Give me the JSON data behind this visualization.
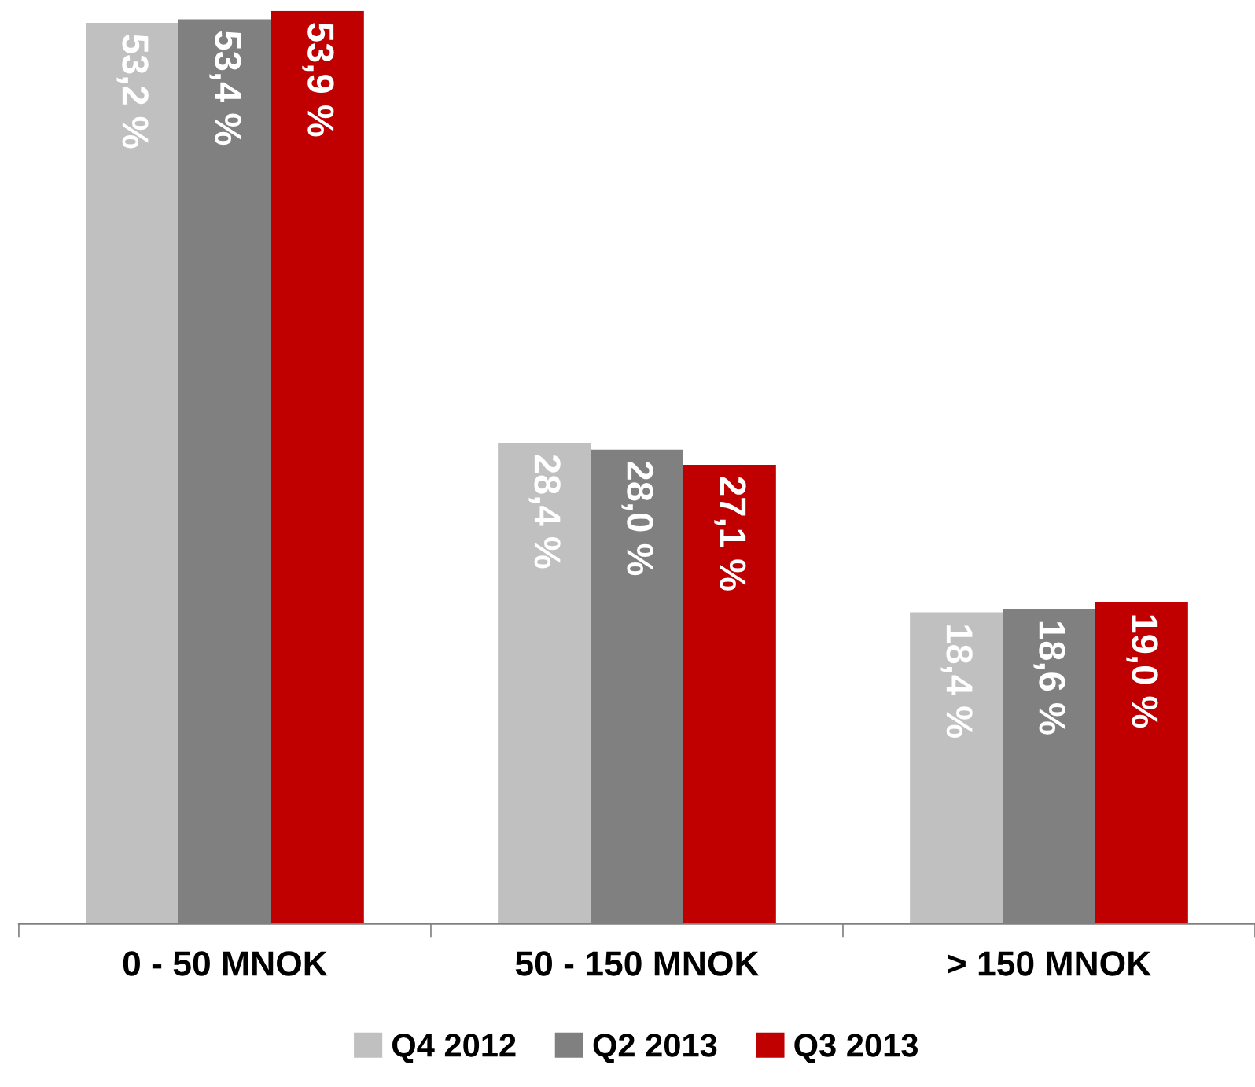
{
  "chart_data": {
    "type": "bar",
    "categories": [
      "0 - 50 MNOK",
      "50 - 150 MNOK",
      "> 150 MNOK"
    ],
    "series": [
      {
        "name": "Q4 2012",
        "color": "#c0c0c0",
        "values": [
          53.2,
          28.4,
          18.4
        ],
        "value_labels": [
          "53,2 %",
          "28,4 %",
          "18,4 %"
        ]
      },
      {
        "name": "Q2 2013",
        "color": "#808080",
        "values": [
          53.4,
          28.0,
          18.6
        ],
        "value_labels": [
          "53,4 %",
          "28,0 %",
          "18,6 %"
        ]
      },
      {
        "name": "Q3 2013",
        "color": "#c00000",
        "values": [
          53.9,
          27.1,
          19.0
        ],
        "value_labels": [
          "53,9 %",
          "27,1 %",
          "19,0 %"
        ]
      }
    ],
    "legend": "bottom",
    "grid": false
  }
}
